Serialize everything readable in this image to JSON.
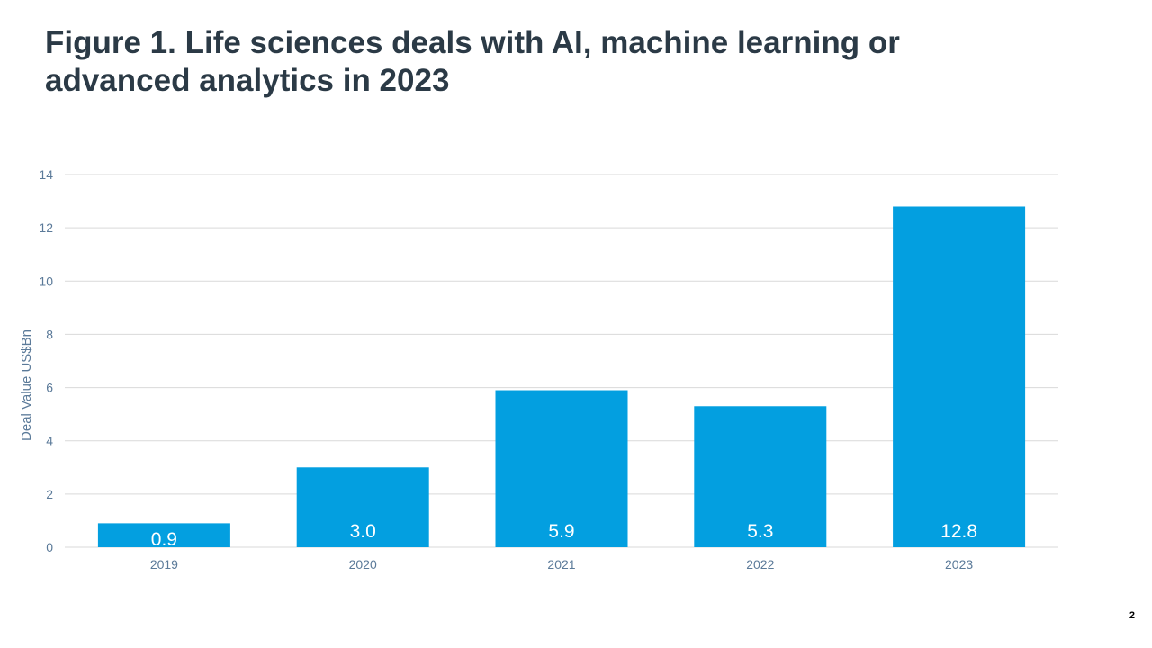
{
  "slide": {
    "title_line1": "Figure 1. Life sciences deals with AI, machine learning or",
    "title_line2": "advanced analytics in 2023",
    "page_number": "2"
  },
  "colors": {
    "bar": "#039fe0",
    "title": "#2b3a46",
    "axis_text": "#5b7a99",
    "gridline": "#d9d9d9",
    "data_label": "#ffffff"
  },
  "chart_data": {
    "type": "bar",
    "categories": [
      "2019",
      "2020",
      "2021",
      "2022",
      "2023"
    ],
    "values": [
      0.9,
      3.0,
      5.9,
      5.3,
      12.8
    ],
    "data_labels": [
      "0.9",
      "3.0",
      "5.9",
      "5.3",
      "12.8"
    ],
    "title": "Figure 1. Life sciences deals with AI, machine learning or advanced analytics in 2023",
    "xlabel": "",
    "ylabel": "Deal Value US$Bn",
    "ylim": [
      0,
      14
    ],
    "yticks": [
      0,
      2,
      4,
      6,
      8,
      10,
      12,
      14
    ],
    "grid": true,
    "legend": "none"
  }
}
